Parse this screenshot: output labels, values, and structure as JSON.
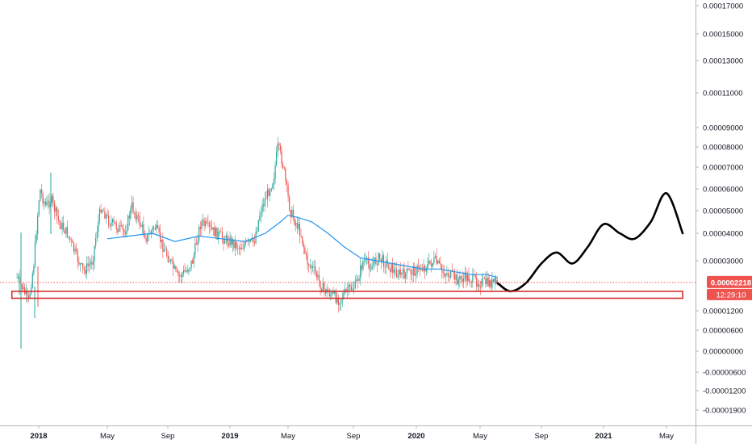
{
  "chart_data": {
    "type": "candlestick",
    "y_scale": "log-shifted",
    "grid": false,
    "legend": "none",
    "colors": {
      "up": "#26a69a",
      "down": "#ef5350",
      "ma": "#2196f3",
      "projection": "#000000",
      "support_box": "#d32f2f",
      "price_line": "#ef5350",
      "price_label_bg": "#ef5350",
      "price_label_text": "#ffffff",
      "axis_text": "#131722",
      "axis_line": "#b2b5be"
    },
    "y_ticks": [
      "0.00017000",
      "0.00015000",
      "0.00013000",
      "0.00011000",
      "0.00009000",
      "0.00008000",
      "0.00007000",
      "0.00006000",
      "0.00005000",
      "0.00004000",
      "0.00003000",
      "0.00001200",
      "0.00000600",
      "0.00000000",
      "-0.00000600",
      "-0.00001200",
      "-0.00001900"
    ],
    "y_tick_values": [
      0.00017,
      0.00015,
      0.00013,
      0.00011,
      9e-05,
      8e-05,
      7e-05,
      6e-05,
      5e-05,
      4e-05,
      3e-05,
      1.2e-05,
      6e-06,
      0.0,
      -6e-06,
      -1.2e-05,
      -1.9e-05
    ],
    "x_ticks": [
      "2018",
      "May",
      "Sep",
      "2019",
      "May",
      "Sep",
      "2020",
      "May",
      "Sep",
      "2021",
      "May"
    ],
    "x_tick_dates": [
      "2018-01-01",
      "2018-05-01",
      "2018-09-01",
      "2019-01-01",
      "2019-05-01",
      "2019-09-01",
      "2020-01-01",
      "2020-05-01",
      "2020-09-01",
      "2021-01-01",
      "2021-05-01"
    ],
    "x_range": [
      "2017-11-15",
      "2021-07-15"
    ],
    "price_series": {
      "dates": [
        "2017-11-24",
        "2017-12-04",
        "2017-12-14",
        "2017-12-24",
        "2018-01-03",
        "2018-01-13",
        "2018-01-23",
        "2018-02-05",
        "2018-02-20",
        "2018-03-05",
        "2018-03-20",
        "2018-04-05",
        "2018-04-20",
        "2018-05-05",
        "2018-05-20",
        "2018-06-05",
        "2018-06-20",
        "2018-07-05",
        "2018-07-20",
        "2018-08-05",
        "2018-08-20",
        "2018-09-05",
        "2018-09-20",
        "2018-10-05",
        "2018-10-20",
        "2018-11-05",
        "2018-11-20",
        "2018-12-05",
        "2018-12-20",
        "2019-01-05",
        "2019-01-20",
        "2019-02-05",
        "2019-02-20",
        "2019-03-05",
        "2019-03-20",
        "2019-04-01",
        "2019-04-10",
        "2019-04-20",
        "2019-04-28",
        "2019-05-05",
        "2019-05-15",
        "2019-05-25",
        "2019-06-05",
        "2019-06-20",
        "2019-07-05",
        "2019-07-20",
        "2019-08-05",
        "2019-08-20",
        "2019-09-05",
        "2019-09-20",
        "2019-10-05",
        "2019-10-20",
        "2019-11-05",
        "2019-11-20",
        "2019-12-05",
        "2019-12-20",
        "2020-01-05",
        "2020-01-20",
        "2020-02-05",
        "2020-02-20",
        "2020-03-05",
        "2020-03-20",
        "2020-04-05",
        "2020-04-20",
        "2020-05-05",
        "2020-05-20",
        "2020-06-05"
      ],
      "close": [
        2.4e-05,
        2e-05,
        1.5e-05,
        3e-05,
        6e-05,
        5.2e-05,
        5.5e-05,
        4.5e-05,
        4e-05,
        3.3e-05,
        2.6e-05,
        3e-05,
        5.2e-05,
        4.5e-05,
        4.3e-05,
        4e-05,
        5.2e-05,
        4.5e-05,
        3.8e-05,
        4.3e-05,
        3.6e-05,
        3e-05,
        2.4e-05,
        2.6e-05,
        3e-05,
        4.5e-05,
        4.2e-05,
        4e-05,
        3.8e-05,
        3.7e-05,
        3.5e-05,
        3.6e-05,
        3.7e-05,
        5e-05,
        5.8e-05,
        6.5e-05,
        8e-05,
        7.2e-05,
        6e-05,
        5e-05,
        4.5e-05,
        4e-05,
        3e-05,
        2.6e-05,
        2e-05,
        1.8e-05,
        1.6e-05,
        1.9e-05,
        2.1e-05,
        3e-05,
        2.8e-05,
        3.1e-05,
        2.9e-05,
        2.6e-05,
        2.5e-05,
        2.6e-05,
        2.7e-05,
        2.8e-05,
        3e-05,
        2.6e-05,
        2.5e-05,
        2.3e-05,
        2.4e-05,
        2.3e-05,
        2.2e-05,
        2.2e-05,
        2.2e-05
      ]
    },
    "ma_series": {
      "name": "",
      "dates": [
        "2018-05-01",
        "2018-06-15",
        "2018-08-01",
        "2018-09-15",
        "2018-11-01",
        "2018-12-15",
        "2019-02-01",
        "2019-03-15",
        "2019-04-15",
        "2019-05-01",
        "2019-05-20",
        "2019-06-15",
        "2019-07-15",
        "2019-08-15",
        "2019-09-15",
        "2019-10-15",
        "2019-11-15",
        "2019-12-15",
        "2020-01-15",
        "2020-02-15",
        "2020-03-15",
        "2020-04-15",
        "2020-05-15",
        "2020-06-05"
      ],
      "values": [
        3.8e-05,
        3.9e-05,
        4e-05,
        3.7e-05,
        3.9e-05,
        3.8e-05,
        3.7e-05,
        4e-05,
        4.5e-05,
        4.8e-05,
        4.7e-05,
        4.5e-05,
        4e-05,
        3.5e-05,
        3.1e-05,
        3e-05,
        2.9e-05,
        2.8e-05,
        2.7e-05,
        2.7e-05,
        2.6e-05,
        2.5e-05,
        2.5e-05,
        2.4e-05
      ]
    },
    "projection": {
      "dates": [
        "2020-06-05",
        "2020-07-01",
        "2020-08-01",
        "2020-09-01",
        "2020-10-01",
        "2020-11-01",
        "2020-12-01",
        "2021-01-01",
        "2021-02-01",
        "2021-03-01",
        "2021-04-01",
        "2021-05-01",
        "2021-06-01"
      ],
      "values": [
        2.2e-05,
        1.9e-05,
        2.2e-05,
        2.9e-05,
        3.3e-05,
        2.9e-05,
        3.5e-05,
        4.4e-05,
        4e-05,
        3.8e-05,
        4.5e-05,
        5.8e-05,
        4e-05
      ]
    },
    "support_zone": {
      "from": "2017-11-15",
      "to": "2021-06-01",
      "low": 1.65e-05,
      "high": 1.9e-05
    },
    "current_price": {
      "value": 2.218e-05,
      "label": "0.00002218"
    },
    "countdown": "12:29:10"
  }
}
